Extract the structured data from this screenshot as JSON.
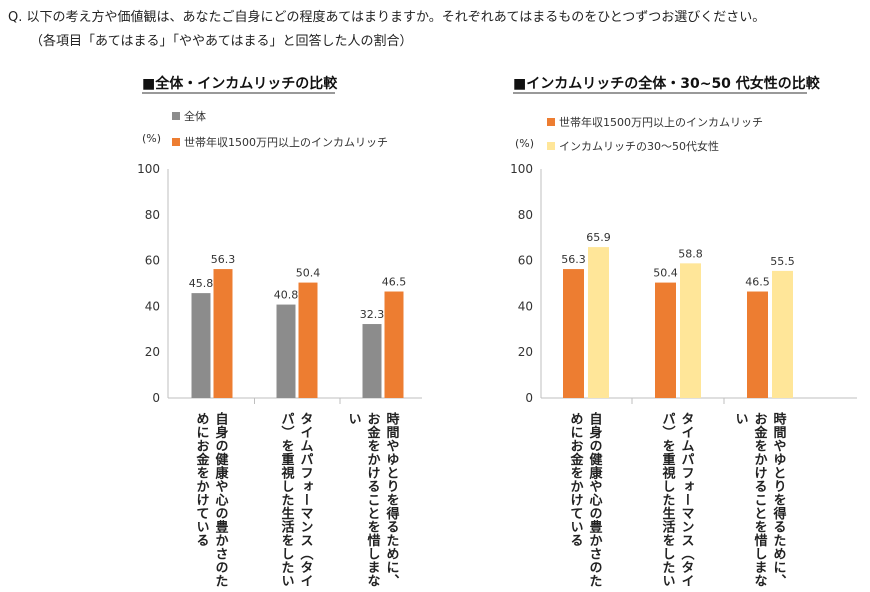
{
  "question": {
    "line1": "Q. 以下の考え方や価値観は、あなたご自身にどの程度あてはまりますか。それぞれあてはまるものをひとつずつお選びください。",
    "line2": "（各項目「あてはまる」「ややあてはまる」と回答した人の割合）"
  },
  "colors": {
    "gray": "#8c8c8c",
    "orange": "#ed7d31",
    "yellow": "#ffe699"
  },
  "chart_data": [
    {
      "type": "bar",
      "title": "■全体・インカムリッチの比較",
      "ylabel": "(%)",
      "ylim": [
        0,
        100
      ],
      "yticks": [
        0,
        20,
        40,
        60,
        80,
        100
      ],
      "legend_position": "top-left",
      "categories": [
        [
          "自身の健康や心の豊かさのた",
          "めにお金をかけている"
        ],
        [
          "タイムパフォーマンス（タイ",
          "パ）を重視した生活をしたい"
        ],
        [
          "時間やゆとりを得るために、",
          "お金をかけることを惜しまな",
          "い"
        ]
      ],
      "series": [
        {
          "name": "全体",
          "color": "#8c8c8c",
          "values": [
            45.8,
            40.8,
            32.3
          ]
        },
        {
          "name": "世帯年収1500万円以上のインカムリッチ",
          "color": "#ed7d31",
          "values": [
            56.3,
            50.4,
            46.5
          ]
        }
      ]
    },
    {
      "type": "bar",
      "title": "■インカムリッチの全体・30~50 代女性の比較",
      "ylabel": "(%)",
      "ylim": [
        0,
        100
      ],
      "yticks": [
        0,
        20,
        40,
        60,
        80,
        100
      ],
      "legend_position": "top-left",
      "categories": [
        [
          "自身の健康や心の豊かさのた",
          "めにお金をかけている"
        ],
        [
          "タイムパフォーマンス（タイ",
          "パ）を重視した生活をしたい"
        ],
        [
          "時間やゆとりを得るために、",
          "お金をかけることを惜しまな",
          "い"
        ]
      ],
      "series": [
        {
          "name": "世帯年収1500万円以上のインカムリッチ",
          "color": "#ed7d31",
          "values": [
            56.3,
            50.4,
            46.5
          ]
        },
        {
          "name": "インカムリッチの30〜50代女性",
          "color": "#ffe699",
          "values": [
            65.9,
            58.8,
            55.5
          ]
        }
      ]
    }
  ]
}
